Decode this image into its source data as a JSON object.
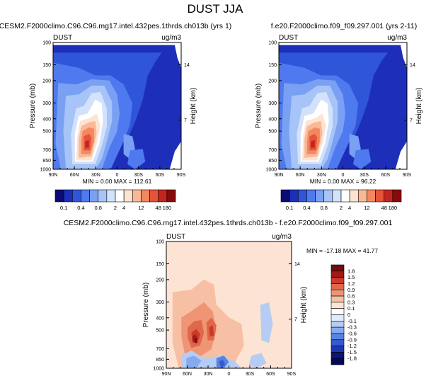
{
  "figure": {
    "title": "DUST JJA"
  },
  "chart_data": [
    {
      "type": "heatmap",
      "id": "p1",
      "title": "CESM2.F2000climo.C96.C96.mg17.intel.432pes.1thrds.ch013b (yrs 1)",
      "left_label": "DUST",
      "right_label": "ug/m3",
      "xlabel": "",
      "ylabel": "Pressure (mb)",
      "y2label": "Height (km)",
      "x_ticks": [
        "90N",
        "60N",
        "30N",
        "0",
        "30S",
        "60S",
        "90S"
      ],
      "y_ticks": [
        "100",
        "150",
        "200",
        "300",
        "400",
        "500",
        "700",
        "850",
        "1000"
      ],
      "y2_ticks": [
        "14",
        "7"
      ],
      "stats": {
        "min_label": "MIN =",
        "min": "0.00",
        "max_label": "MAX =",
        "max": "112.61"
      },
      "colorbar_labels": [
        "0.1",
        "0.4",
        "0.8",
        "2",
        "4",
        "12",
        "48",
        "180"
      ],
      "colors": [
        "#0c0b73",
        "#1d2fb8",
        "#2f55d9",
        "#4f79ee",
        "#7aa0f3",
        "#a6c4f7",
        "#d3e2fa",
        "#ffffff",
        "#fde3d2",
        "#f9b896",
        "#f4875e",
        "#e4533a",
        "#c0261f",
        "#8a0a0a"
      ]
    },
    {
      "type": "heatmap",
      "id": "p2",
      "title": "f.e20.F2000climo.f09_f09.297.001 (yrs 2-11)",
      "left_label": "DUST",
      "right_label": "ug/m3",
      "xlabel": "",
      "ylabel": "Pressure (mb)",
      "y2label": "Height (km)",
      "x_ticks": [
        "90N",
        "60N",
        "30N",
        "0",
        "30S",
        "60S",
        "90S"
      ],
      "y_ticks": [
        "100",
        "150",
        "200",
        "300",
        "400",
        "500",
        "700",
        "850",
        "1000"
      ],
      "y2_ticks": [
        "14",
        "7"
      ],
      "stats": {
        "min_label": "MIN =",
        "min": "0.00",
        "max_label": "MAX =",
        "max": "96.22"
      },
      "colorbar_labels": [
        "0.1",
        "0.4",
        "0.8",
        "2",
        "4",
        "12",
        "48",
        "180"
      ],
      "colors": [
        "#0c0b73",
        "#1d2fb8",
        "#2f55d9",
        "#4f79ee",
        "#7aa0f3",
        "#a6c4f7",
        "#d3e2fa",
        "#ffffff",
        "#fde3d2",
        "#f9b896",
        "#f4875e",
        "#e4533a",
        "#c0261f",
        "#8a0a0a"
      ]
    },
    {
      "type": "heatmap",
      "id": "diff",
      "title": "CESM2.F2000climo.C96.C96.mg17.intel.432pes.1thrds.ch013b - f.e20.F2000climo.f09_f09.297.001",
      "left_label": "DUST",
      "right_label": "ug/m3",
      "xlabel": "",
      "ylabel": "Pressure (mb)",
      "y2label": "Height (km)",
      "x_ticks": [
        "90N",
        "60N",
        "30N",
        "0",
        "30S",
        "60S",
        "90S"
      ],
      "y_ticks": [
        "100",
        "150",
        "200",
        "300",
        "400",
        "500",
        "700",
        "850",
        "1000"
      ],
      "y2_ticks": [
        "14",
        "7"
      ],
      "stats": {
        "min_label": "MIN =",
        "min": "-17.18",
        "max_label": "MAX =",
        "max": "41.77"
      },
      "colorbar_labels": [
        "1.8",
        "1.5",
        "1.2",
        "0.9",
        "0.6",
        "0.3",
        "0.1",
        "0",
        "-0.1",
        "-0.3",
        "-0.6",
        "-0.9",
        "-1.2",
        "-1.5",
        "-1.8"
      ],
      "colors": [
        "#730c0c",
        "#a11818",
        "#c93a2a",
        "#e0674a",
        "#ef9575",
        "#f7bfa3",
        "#fce3d3",
        "#ffffff",
        "#dfeafa",
        "#b5cdf4",
        "#86aaee",
        "#5883e3",
        "#3559d2",
        "#1d36b3",
        "#0c1478",
        "#04085a"
      ]
    }
  ]
}
